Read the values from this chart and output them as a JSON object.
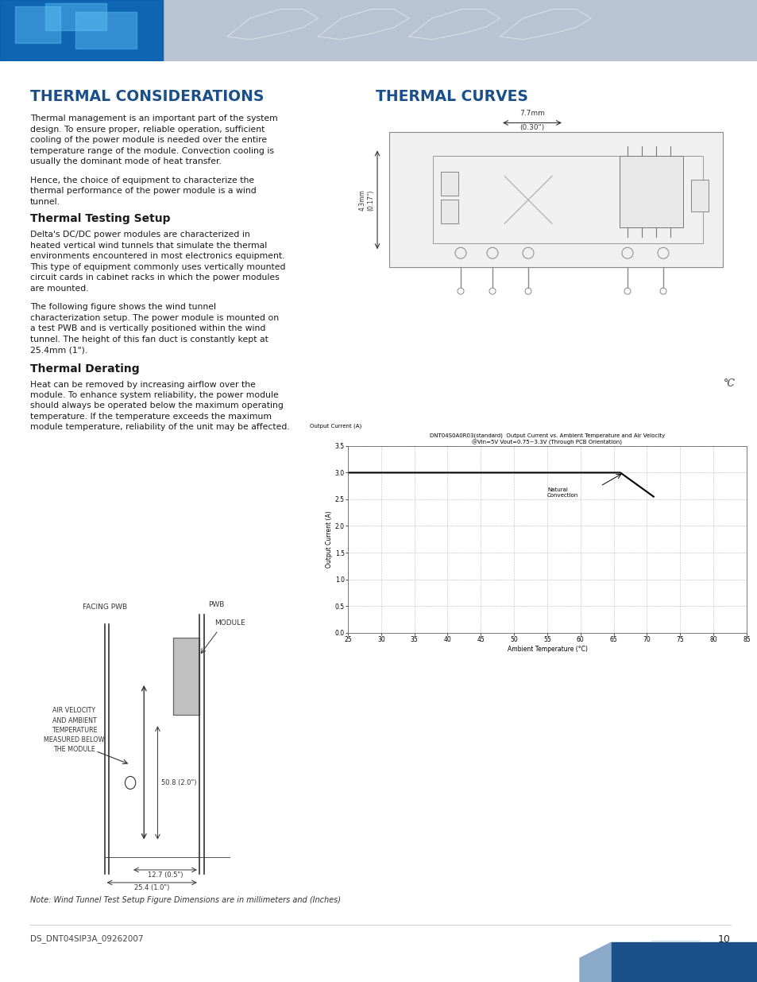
{
  "page_bg": "#ffffff",
  "header_bar_color": "#b8c4d4",
  "title_left": "THERMAL CONSIDERATIONS",
  "title_right": "THERMAL CURVES",
  "title_color": "#1a4f8a",
  "subtitle1": "Thermal Testing Setup",
  "subtitle2": "Thermal Derating",
  "body1_lines": [
    "Thermal management is an important part of the system",
    "design. To ensure proper, reliable operation, sufficient",
    "cooling of the power module is needed over the entire",
    "temperature range of the module. Convection cooling is",
    "usually the dominant mode of heat transfer.",
    "",
    "Hence, the choice of equipment to characterize the",
    "thermal performance of the power module is a wind",
    "tunnel."
  ],
  "body2_lines": [
    "Delta's DC/DC power modules are characterized in",
    "heated vertical wind tunnels that simulate the thermal",
    "environments encountered in most electronics equipment.",
    "This type of equipment commonly uses vertically mounted",
    "circuit cards in cabinet racks in which the power modules",
    "are mounted.",
    "",
    "The following figure shows the wind tunnel",
    "characterization setup. The power module is mounted on",
    "a test PWB and is vertically positioned within the wind",
    "tunnel. The height of this fan duct is constantly kept at",
    "25.4mm (1\")."
  ],
  "body3_lines": [
    "Heat can be removed by increasing airflow over the",
    "module. To enhance system reliability, the power module",
    "should always be operated below the maximum operating",
    "temperature. If the temperature exceeds the maximum",
    "module temperature, reliability of the unit may be affected."
  ],
  "graph_title1": "DNT04S0A0R03(standard)  Output Current vs. Ambient Temperature and Air Velocity",
  "graph_title2": "@Vin=5V Vout=0.75~3.3V (Through PCB Orientation)",
  "graph_ylabel": "Output Current (A)",
  "graph_xlabel": "Ambient Temperature (°C)",
  "graph_xlim": [
    25,
    85
  ],
  "graph_ylim": [
    0.0,
    3.5
  ],
  "graph_yticks": [
    0.0,
    0.5,
    1.0,
    1.5,
    2.0,
    2.5,
    3.0,
    3.5
  ],
  "graph_xticks": [
    25,
    30,
    35,
    40,
    45,
    50,
    55,
    60,
    65,
    70,
    75,
    80,
    85
  ],
  "footer_text": "DS_DNT04SIP3A_09262007",
  "page_number": "10",
  "note_text": "Note: Wind Tunnel Test Setup Figure Dimensions are in millimeters and (Inches)"
}
